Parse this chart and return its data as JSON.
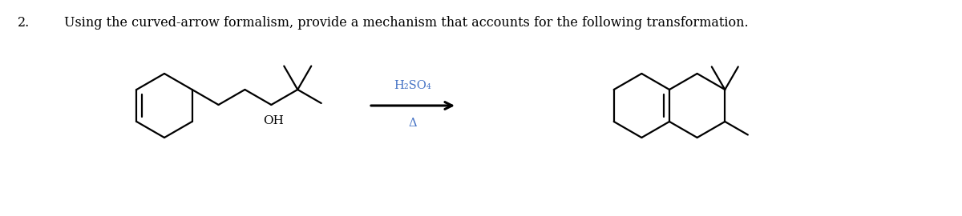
{
  "title_number": "2.",
  "title_text": "Using the curved-arrow formalism, provide a mechanism that accounts for the following transformation.",
  "reagent_line1": "H₂SO₄",
  "reagent_line2": "Δ",
  "oh_label": "OH",
  "bg_color": "#ffffff",
  "text_color": "#000000",
  "reagent_color": "#4472c4",
  "line_width": 1.6,
  "title_fontsize": 11.5,
  "reagent_fontsize": 10.5
}
